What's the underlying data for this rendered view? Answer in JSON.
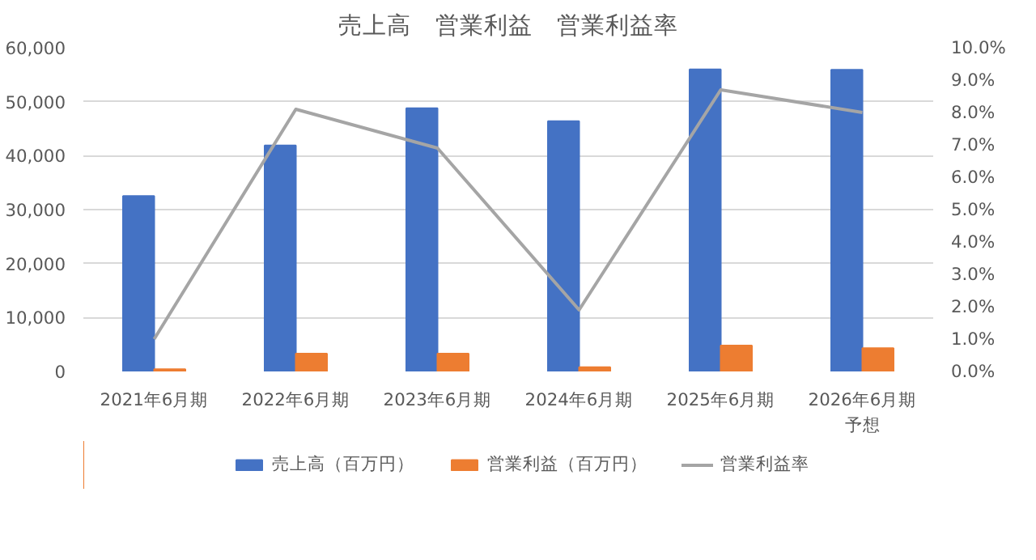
{
  "chart_data": {
    "type": "bar",
    "title": "売上高　営業利益　営業利益率",
    "categories": [
      "2021年6月期",
      "2022年6月期",
      "2023年6月期",
      "2024年6月期",
      "2025年6月期",
      "2026年6月期予想"
    ],
    "series": [
      {
        "name": "売上高（百万円）",
        "color": "#4472c4",
        "values": [
          32500,
          41900,
          48800,
          46400,
          56000,
          55900
        ]
      },
      {
        "name": "営業利益（百万円）",
        "color": "#ed7d31",
        "values": [
          400,
          3300,
          3300,
          800,
          4800,
          4300
        ]
      },
      {
        "name": "営業利益率",
        "type": "line",
        "axis": "y2",
        "color": "#a5a5a5",
        "values": [
          1.0,
          8.1,
          6.9,
          1.9,
          8.7,
          8.0
        ]
      }
    ],
    "ylim": [
      0,
      60000
    ],
    "yticks": [
      0,
      {
        "value": 10000,
        "label": "10,000"
      },
      {
        "value": 20000,
        "label": "20,000"
      },
      {
        "value": 30000,
        "label": "30,000"
      },
      {
        "value": 40000,
        "label": "40,000"
      },
      {
        "value": 50000,
        "label": "50,000"
      },
      {
        "value": 60000,
        "label": "60,000"
      }
    ],
    "y2lim": [
      0,
      10
    ],
    "y2ticks": [
      {
        "value": 0,
        "label": "0.0%"
      },
      {
        "value": 1,
        "label": "1.0%"
      },
      {
        "value": 2,
        "label": "2.0%"
      },
      {
        "value": 3,
        "label": "3.0%"
      },
      {
        "value": 4,
        "label": "4.0%"
      },
      {
        "value": 5,
        "label": "5.0%"
      },
      {
        "value": 6,
        "label": "6.0%"
      },
      {
        "value": 7,
        "label": "7.0%"
      },
      {
        "value": 8,
        "label": "8.0%"
      },
      {
        "value": 9,
        "label": "9.0%"
      },
      {
        "value": 10,
        "label": "10.0%"
      }
    ],
    "grid": "y",
    "legend": "bottom"
  }
}
